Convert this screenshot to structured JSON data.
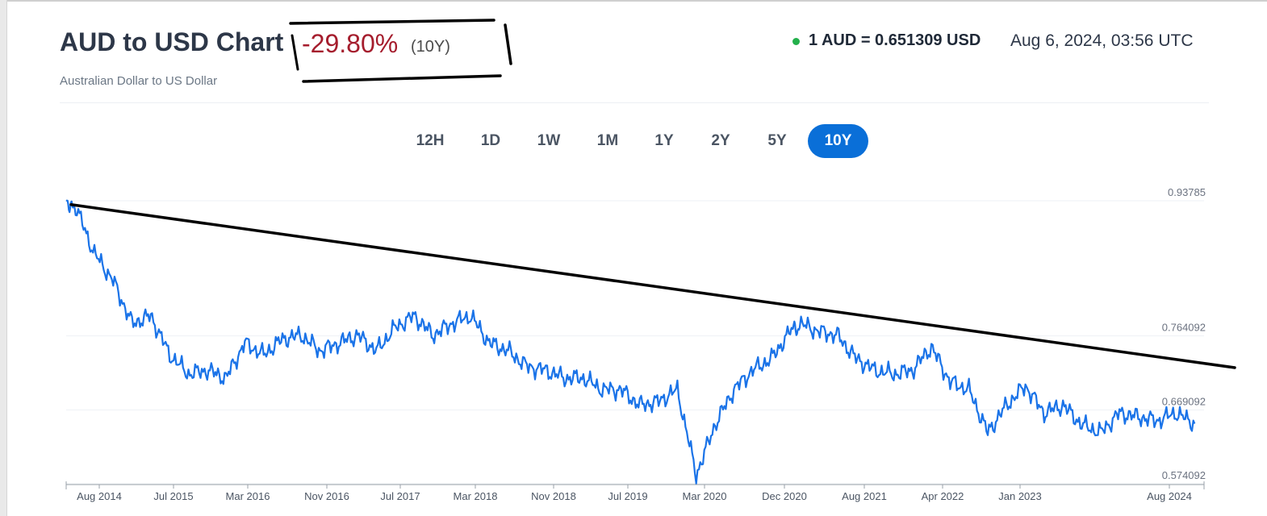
{
  "header": {
    "title": "AUD to USD Chart",
    "change": "-29.80%",
    "period": "(10Y)",
    "subtitle": "Australian Dollar to US Dollar",
    "rate": "1 AUD = 0.651309 USD",
    "timestamp": "Aug 6, 2024, 03:56 UTC"
  },
  "tabs": [
    {
      "label": "12H",
      "active": false
    },
    {
      "label": "1D",
      "active": false
    },
    {
      "label": "1W",
      "active": false
    },
    {
      "label": "1M",
      "active": false
    },
    {
      "label": "1Y",
      "active": false
    },
    {
      "label": "2Y",
      "active": false
    },
    {
      "label": "5Y",
      "active": false
    },
    {
      "label": "10Y",
      "active": true
    }
  ],
  "colors": {
    "line": "#1a73e8",
    "trend": "#000000",
    "active_tab": "#0a6fd8",
    "negative": "#a51d2d",
    "live_dot": "#23b04b"
  },
  "chart_data": {
    "type": "line",
    "title": "",
    "xlabel": "",
    "ylabel": "",
    "x_ticks": [
      "Aug 2014",
      "Jul 2015",
      "Mar 2016",
      "Nov 2016",
      "Jul 2017",
      "Mar 2018",
      "Nov 2018",
      "Jul 2019",
      "Mar 2020",
      "Dec 2020",
      "Aug 2021",
      "Apr 2022",
      "Jan 2023",
      "Aug 2024"
    ],
    "y_ticks": [
      0.93785,
      0.764092,
      0.669092,
      0.574092
    ],
    "y_tick_labels": [
      "0.93785",
      "0.764092",
      "0.669092",
      "0.574092"
    ],
    "ylim": [
      0.574092,
      0.93785
    ],
    "grid": true,
    "series": [
      {
        "name": "",
        "x": [
          "2014-08",
          "2014-09",
          "2014-11",
          "2015-01",
          "2015-03",
          "2015-05",
          "2015-07",
          "2015-09",
          "2015-11",
          "2016-01",
          "2016-03",
          "2016-05",
          "2016-07",
          "2016-09",
          "2016-11",
          "2017-01",
          "2017-03",
          "2017-05",
          "2017-07",
          "2017-09",
          "2017-11",
          "2018-01",
          "2018-03",
          "2018-05",
          "2018-07",
          "2018-09",
          "2018-11",
          "2019-01",
          "2019-03",
          "2019-05",
          "2019-07",
          "2019-09",
          "2019-11",
          "2020-01",
          "2020-03",
          "2020-05",
          "2020-07",
          "2020-09",
          "2020-11",
          "2021-01",
          "2021-02",
          "2021-04",
          "2021-06",
          "2021-08",
          "2021-10",
          "2021-12",
          "2022-02",
          "2022-04",
          "2022-06",
          "2022-08",
          "2022-10",
          "2022-12",
          "2023-02",
          "2023-04",
          "2023-06",
          "2023-08",
          "2023-10",
          "2023-12",
          "2024-02",
          "2024-04",
          "2024-06",
          "2024-08"
        ],
        "values": [
          0.935,
          0.93,
          0.87,
          0.835,
          0.78,
          0.79,
          0.74,
          0.715,
          0.72,
          0.71,
          0.755,
          0.74,
          0.76,
          0.765,
          0.745,
          0.755,
          0.765,
          0.745,
          0.775,
          0.79,
          0.765,
          0.78,
          0.79,
          0.755,
          0.745,
          0.725,
          0.72,
          0.71,
          0.71,
          0.695,
          0.695,
          0.675,
          0.68,
          0.695,
          0.585,
          0.65,
          0.695,
          0.72,
          0.735,
          0.77,
          0.78,
          0.77,
          0.765,
          0.735,
          0.72,
          0.715,
          0.72,
          0.75,
          0.705,
          0.695,
          0.64,
          0.675,
          0.7,
          0.665,
          0.675,
          0.65,
          0.64,
          0.665,
          0.66,
          0.655,
          0.665,
          0.651309
        ]
      }
    ],
    "trendline": {
      "start": [
        "2014-08",
        0.935
      ],
      "end": [
        "2024-10",
        0.7
      ]
    }
  }
}
